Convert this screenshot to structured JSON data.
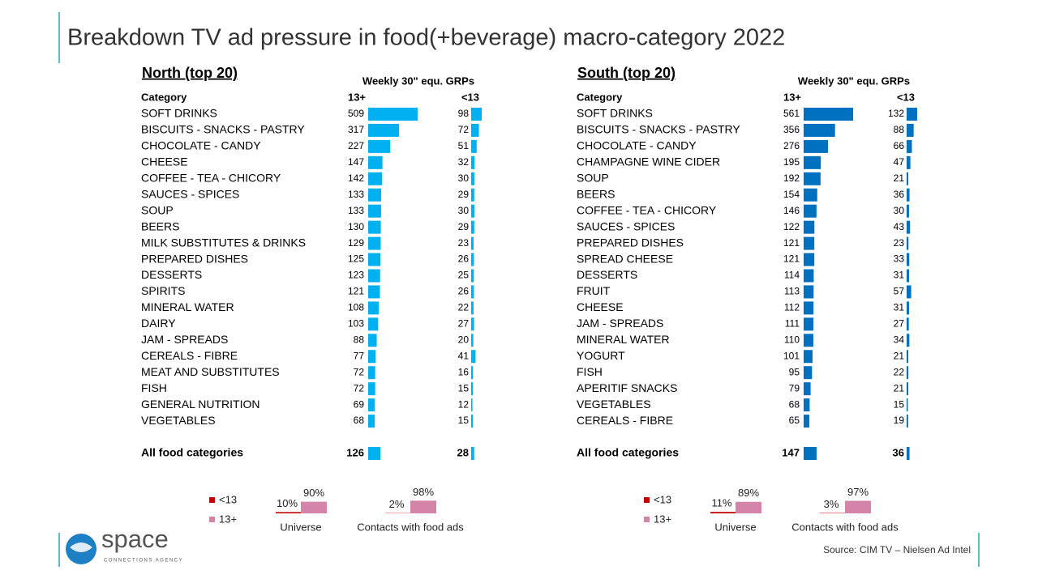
{
  "title": "Breakdown TV ad pressure in food(+beverage) macro-category 2022",
  "panels": [
    {
      "heading": "North (top 20)",
      "metric": "Weekly 30\" equ. GRPs",
      "col_category": "Category",
      "col_a": "13+",
      "col_b": "<13",
      "color": "#00b0f0",
      "rows": [
        {
          "category": "SOFT DRINKS",
          "a": 509,
          "b": 98
        },
        {
          "category": "BISCUITS - SNACKS - PASTRY",
          "a": 317,
          "b": 72
        },
        {
          "category": "CHOCOLATE - CANDY",
          "a": 227,
          "b": 51
        },
        {
          "category": "CHEESE",
          "a": 147,
          "b": 32
        },
        {
          "category": "COFFEE - TEA - CHICORY",
          "a": 142,
          "b": 30
        },
        {
          "category": "SAUCES - SPICES",
          "a": 133,
          "b": 29
        },
        {
          "category": "SOUP",
          "a": 133,
          "b": 30
        },
        {
          "category": "BEERS",
          "a": 130,
          "b": 29
        },
        {
          "category": "MILK SUBSTITUTES & DRINKS",
          "a": 129,
          "b": 23
        },
        {
          "category": "PREPARED DISHES",
          "a": 125,
          "b": 26
        },
        {
          "category": "DESSERTS",
          "a": 123,
          "b": 25
        },
        {
          "category": "SPIRITS",
          "a": 121,
          "b": 26
        },
        {
          "category": "MINERAL WATER",
          "a": 108,
          "b": 22
        },
        {
          "category": "DAIRY",
          "a": 103,
          "b": 27
        },
        {
          "category": "JAM - SPREADS",
          "a": 88,
          "b": 20
        },
        {
          "category": "CEREALS - FIBRE",
          "a": 77,
          "b": 41
        },
        {
          "category": "MEAT AND SUBSTITUTES",
          "a": 72,
          "b": 16
        },
        {
          "category": "FISH",
          "a": 72,
          "b": 15
        },
        {
          "category": "GENERAL NUTRITION",
          "a": 69,
          "b": 12
        },
        {
          "category": "VEGETABLES",
          "a": 68,
          "b": 15
        }
      ],
      "total": {
        "category": "All food categories",
        "a": 126,
        "b": 28
      },
      "legend": [
        {
          "name": "<13",
          "color": "#c00000"
        },
        {
          "name": "13+",
          "color": "#d484a8"
        }
      ],
      "mini": [
        {
          "label": "Universe",
          "values": [
            10,
            90
          ],
          "value_labels": [
            "10%",
            "90%"
          ]
        },
        {
          "label": "Contacts with food ads",
          "values": [
            2,
            98
          ],
          "value_labels": [
            "2%",
            "98%"
          ]
        }
      ]
    },
    {
      "heading": "South (top 20)",
      "metric": "Weekly 30\" equ. GRPs",
      "col_category": "Category",
      "col_a": "13+",
      "col_b": "<13",
      "color": "#0070c0",
      "rows": [
        {
          "category": "SOFT DRINKS",
          "a": 561,
          "b": 132
        },
        {
          "category": "BISCUITS - SNACKS - PASTRY",
          "a": 356,
          "b": 88
        },
        {
          "category": "CHOCOLATE - CANDY",
          "a": 276,
          "b": 66
        },
        {
          "category": "CHAMPAGNE WINE CIDER",
          "a": 195,
          "b": 47
        },
        {
          "category": "SOUP",
          "a": 192,
          "b": 21
        },
        {
          "category": "BEERS",
          "a": 154,
          "b": 36
        },
        {
          "category": "COFFEE - TEA - CHICORY",
          "a": 146,
          "b": 30
        },
        {
          "category": "SAUCES - SPICES",
          "a": 122,
          "b": 43
        },
        {
          "category": "PREPARED DISHES",
          "a": 121,
          "b": 23
        },
        {
          "category": "SPREAD CHEESE",
          "a": 121,
          "b": 33
        },
        {
          "category": "DESSERTS",
          "a": 114,
          "b": 31
        },
        {
          "category": "FRUIT",
          "a": 113,
          "b": 57
        },
        {
          "category": "CHEESE",
          "a": 112,
          "b": 31
        },
        {
          "category": "JAM - SPREADS",
          "a": 111,
          "b": 27
        },
        {
          "category": "MINERAL WATER",
          "a": 110,
          "b": 34
        },
        {
          "category": "YOGURT",
          "a": 101,
          "b": 21
        },
        {
          "category": "FISH",
          "a": 95,
          "b": 22
        },
        {
          "category": "APERITIF SNACKS",
          "a": 79,
          "b": 21
        },
        {
          "category": "VEGETABLES",
          "a": 68,
          "b": 15
        },
        {
          "category": "CEREALS - FIBRE",
          "a": 65,
          "b": 19
        }
      ],
      "total": {
        "category": "All food categories",
        "a": 147,
        "b": 36
      },
      "legend": [
        {
          "name": "<13",
          "color": "#c00000"
        },
        {
          "name": "13+",
          "color": "#d484a8"
        }
      ],
      "mini": [
        {
          "label": "Universe",
          "values": [
            11,
            89
          ],
          "value_labels": [
            "11%",
            "89%"
          ]
        },
        {
          "label": "Contacts with food ads",
          "values": [
            3,
            97
          ],
          "value_labels": [
            "3%",
            "97%"
          ]
        }
      ]
    }
  ],
  "source": "Source: CIM TV – Nielsen Ad Intel",
  "logo": {
    "name": "space",
    "tagline": "CONNECTIONS AGENCY"
  }
}
